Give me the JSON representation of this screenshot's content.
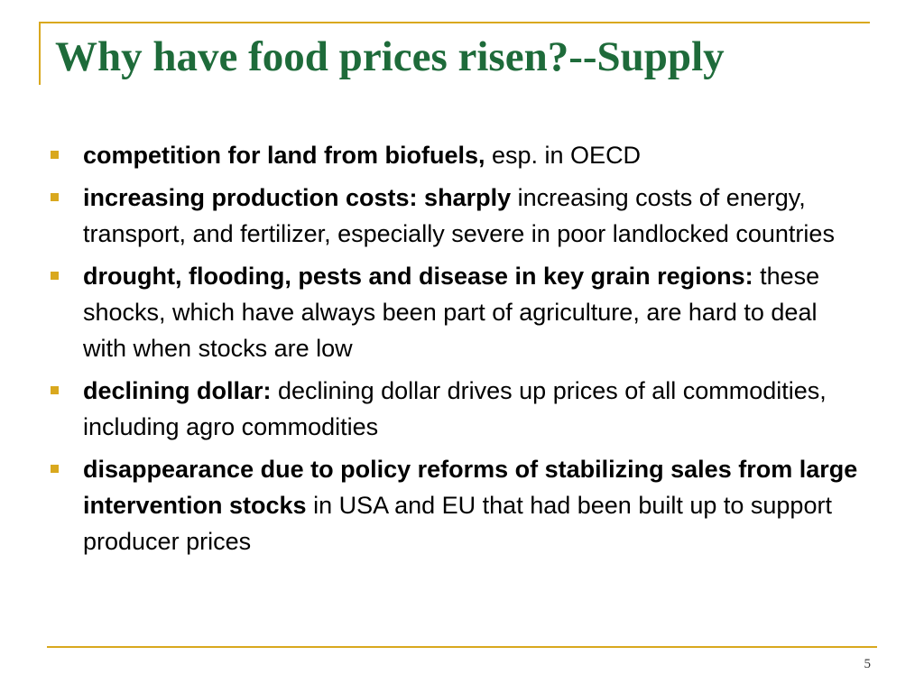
{
  "slide": {
    "title": "Why have food prices risen?--Supply",
    "bullets": [
      {
        "bold": "competition for land from biofuels,",
        "rest": " esp. in OECD"
      },
      {
        "bold": "increasing production costs: sharply",
        "rest": " increasing costs of energy, transport, and fertilizer, especially severe in poor landlocked countries"
      },
      {
        "bold": "drought, flooding, pests and disease in key grain regions:",
        "rest": " these shocks, which have always been part of agriculture, are hard to deal with when stocks are low"
      },
      {
        "bold": "declining dollar:",
        "rest": " declining dollar drives up prices of all commodities, including agro commodities"
      },
      {
        "bold": "disappearance due to policy reforms of stabilizing sales from large intervention stocks",
        "rest": " in USA and EU that had been  built up to support producer prices"
      }
    ],
    "page_number": "5"
  },
  "colors": {
    "title": "#1e6b3a",
    "accent": "#d9a81e",
    "text": "#000000"
  },
  "icons": {
    "bullet": "square-bullet-icon"
  }
}
